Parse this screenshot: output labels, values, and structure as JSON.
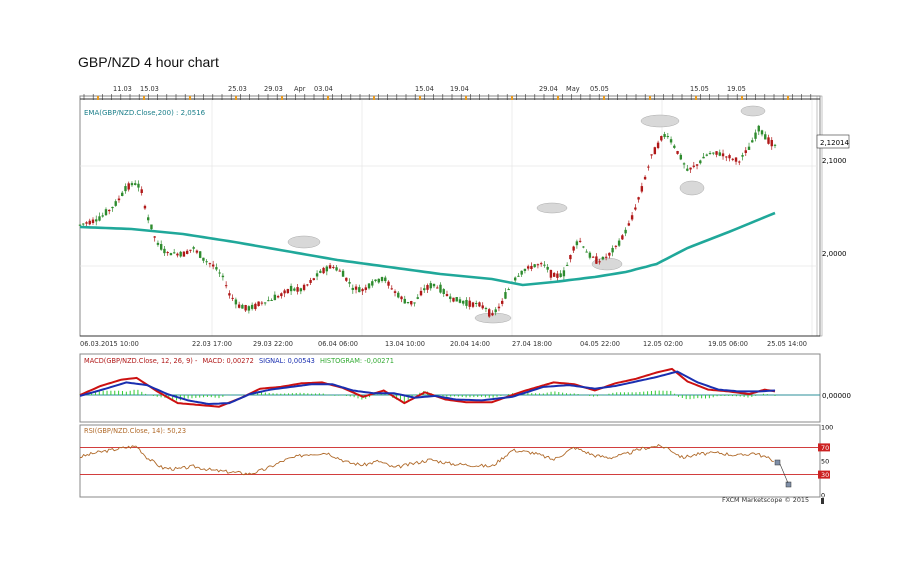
{
  "page": {
    "title": "GBP/NZD 4 hour chart"
  },
  "colors": {
    "up_candle": "#2e8b2e",
    "down_candle": "#b01818",
    "ema": "#20a89a",
    "macd": "#cc1111",
    "signal": "#1a2fb0",
    "histogram": "#33cc33",
    "rsi": "#b06a2a",
    "rsi_band": "#cc2222",
    "zero_line": "#2b8f99",
    "annotation": "#d8d8d8",
    "price_box": "#ffffff"
  },
  "price_panel": {
    "indicator_label": "EMA(GBP/NZD.Close,200) : 2,0516",
    "current_price_label": "2,12014",
    "y_tick_labels": [
      "2,1000",
      "2,0000"
    ],
    "top_date_labels": [
      "11.03",
      "15.03",
      "25.03",
      "29.03",
      "Apr",
      "03.04",
      "15.04",
      "19.04",
      "29.04",
      "May",
      "05.05",
      "15.05",
      "19.05"
    ],
    "bottom_date_labels": [
      "06.03.2015 10:00",
      "22.03 17:00",
      "29.03 22:00",
      "06.04 06:00",
      "13.04 10:00",
      "20.04 14:00",
      "27.04 18:00",
      "04.05 22:00",
      "12.05 02:00",
      "19.05 06:00",
      "25.05 14:00"
    ]
  },
  "macd_panel": {
    "label_main": "MACD(GBP/NZD.Close, 12, 26, 9) -",
    "label_macd": "MACD: 0,00272",
    "label_signal": "SIGNAL: 0,00543",
    "label_histogram": "HISTOGRAM: -0,00271",
    "y_tick_label": "0,00000"
  },
  "rsi_panel": {
    "label": "RSI(GBP/NZD.Close, 14): 50,23",
    "y_tick_labels": [
      "100",
      "70",
      "50",
      "30",
      "0"
    ]
  },
  "footer": {
    "watermark": "FXCM Marketscope © 2015"
  },
  "chart_data": [
    {
      "type": "candlestick",
      "title": "GBP/NZD 4 hour chart",
      "ylim": [
        1.93,
        2.17
      ],
      "x_range": [
        "06.03.2015 10:00",
        "25.05 14:00"
      ],
      "price_path": [
        [
          0,
          2.041
        ],
        [
          4,
          2.048
        ],
        [
          7,
          2.062
        ],
        [
          9,
          2.079
        ],
        [
          11,
          2.083
        ],
        [
          12,
          2.074
        ],
        [
          13,
          2.051
        ],
        [
          15,
          2.022
        ],
        [
          17,
          2.013
        ],
        [
          20,
          2.012
        ],
        [
          22,
          2.018
        ],
        [
          24,
          2.007
        ],
        [
          26,
          2.0
        ],
        [
          28,
          1.987
        ],
        [
          29,
          1.972
        ],
        [
          31,
          1.96
        ],
        [
          33,
          1.957
        ],
        [
          35,
          1.963
        ],
        [
          37,
          1.966
        ],
        [
          39,
          1.971
        ],
        [
          41,
          1.977
        ],
        [
          43,
          1.976
        ],
        [
          45,
          1.985
        ],
        [
          47,
          1.995
        ],
        [
          49,
          2.0
        ],
        [
          51,
          1.993
        ],
        [
          53,
          1.978
        ],
        [
          55,
          1.976
        ],
        [
          57,
          1.984
        ],
        [
          59,
          1.988
        ],
        [
          61,
          1.975
        ],
        [
          63,
          1.965
        ],
        [
          65,
          1.963
        ],
        [
          67,
          1.978
        ],
        [
          69,
          1.981
        ],
        [
          71,
          1.972
        ],
        [
          73,
          1.966
        ],
        [
          75,
          1.963
        ],
        [
          77,
          1.962
        ],
        [
          79,
          1.958
        ],
        [
          80,
          1.95
        ],
        [
          82,
          1.963
        ],
        [
          84,
          1.985
        ],
        [
          86,
          1.995
        ],
        [
          88,
          2.0
        ],
        [
          90,
          2.002
        ],
        [
          92,
          1.99
        ],
        [
          94,
          1.992
        ],
        [
          96,
          2.02
        ],
        [
          97,
          2.026
        ],
        [
          99,
          2.01
        ],
        [
          101,
          2.005
        ],
        [
          103,
          2.012
        ],
        [
          105,
          2.025
        ],
        [
          107,
          2.045
        ],
        [
          109,
          2.075
        ],
        [
          111,
          2.11
        ],
        [
          113,
          2.128
        ],
        [
          114,
          2.132
        ],
        [
          116,
          2.115
        ],
        [
          118,
          2.095
        ],
        [
          120,
          2.102
        ],
        [
          122,
          2.112
        ],
        [
          124,
          2.113
        ],
        [
          126,
          2.109
        ],
        [
          128,
          2.105
        ],
        [
          130,
          2.118
        ],
        [
          132,
          2.138
        ],
        [
          133,
          2.13
        ],
        [
          135,
          2.12
        ]
      ]
    },
    {
      "type": "line",
      "name": "EMA(GBP/NZD.Close,200)",
      "values_path": [
        [
          0,
          2.039
        ],
        [
          10,
          2.037
        ],
        [
          20,
          2.032
        ],
        [
          30,
          2.024
        ],
        [
          40,
          2.015
        ],
        [
          50,
          2.006
        ],
        [
          60,
          1.999
        ],
        [
          70,
          1.992
        ],
        [
          80,
          1.987
        ],
        [
          86,
          1.981
        ],
        [
          92,
          1.984
        ],
        [
          100,
          1.989
        ],
        [
          106,
          1.994
        ],
        [
          112,
          2.002
        ],
        [
          118,
          2.018
        ],
        [
          126,
          2.034
        ],
        [
          135,
          2.053
        ]
      ]
    },
    {
      "type": "line",
      "macd_path": [
        [
          0,
          0
        ],
        [
          4,
          0.5
        ],
        [
          8,
          0.85
        ],
        [
          11,
          0.95
        ],
        [
          15,
          0.2
        ],
        [
          19,
          -0.45
        ],
        [
          23,
          -0.55
        ],
        [
          27,
          -0.65
        ],
        [
          31,
          -0.2
        ],
        [
          35,
          0.35
        ],
        [
          39,
          0.45
        ],
        [
          43,
          0.65
        ],
        [
          47,
          0.7
        ],
        [
          51,
          0.4
        ],
        [
          55,
          -0.1
        ],
        [
          59,
          0.25
        ],
        [
          63,
          -0.45
        ],
        [
          67,
          0.15
        ],
        [
          71,
          -0.25
        ],
        [
          75,
          -0.4
        ],
        [
          80,
          -0.4
        ],
        [
          86,
          0.2
        ],
        [
          92,
          0.7
        ],
        [
          96,
          0.6
        ],
        [
          100,
          0.25
        ],
        [
          104,
          0.65
        ],
        [
          108,
          0.9
        ],
        [
          112,
          1.25
        ],
        [
          115,
          1.45
        ],
        [
          118,
          0.75
        ],
        [
          122,
          0.3
        ],
        [
          126,
          0.2
        ],
        [
          130,
          0.05
        ],
        [
          133,
          0.3
        ],
        [
          135,
          0.2
        ]
      ],
      "signal_path": [
        [
          0,
          -0.05
        ],
        [
          5,
          0.35
        ],
        [
          9,
          0.7
        ],
        [
          13,
          0.55
        ],
        [
          17,
          0.05
        ],
        [
          21,
          -0.3
        ],
        [
          25,
          -0.5
        ],
        [
          29,
          -0.45
        ],
        [
          33,
          0.05
        ],
        [
          37,
          0.3
        ],
        [
          41,
          0.45
        ],
        [
          45,
          0.6
        ],
        [
          49,
          0.6
        ],
        [
          53,
          0.25
        ],
        [
          57,
          0.1
        ],
        [
          61,
          0.1
        ],
        [
          65,
          -0.15
        ],
        [
          69,
          -0.05
        ],
        [
          73,
          -0.25
        ],
        [
          78,
          -0.3
        ],
        [
          84,
          -0.1
        ],
        [
          90,
          0.45
        ],
        [
          95,
          0.55
        ],
        [
          100,
          0.35
        ],
        [
          104,
          0.5
        ],
        [
          108,
          0.75
        ],
        [
          112,
          1.0
        ],
        [
          116,
          1.3
        ],
        [
          120,
          0.7
        ],
        [
          124,
          0.3
        ],
        [
          128,
          0.2
        ],
        [
          132,
          0.2
        ],
        [
          135,
          0.25
        ]
      ]
    },
    {
      "type": "line",
      "ylim": [
        0,
        100
      ],
      "rsi_path": [
        [
          0,
          56
        ],
        [
          3,
          62
        ],
        [
          6,
          66
        ],
        [
          9,
          70
        ],
        [
          11,
          72
        ],
        [
          13,
          55
        ],
        [
          16,
          40
        ],
        [
          19,
          38
        ],
        [
          22,
          42
        ],
        [
          26,
          36
        ],
        [
          29,
          34
        ],
        [
          33,
          31
        ],
        [
          36,
          38
        ],
        [
          40,
          52
        ],
        [
          44,
          60
        ],
        [
          48,
          62
        ],
        [
          52,
          48
        ],
        [
          55,
          44
        ],
        [
          58,
          50
        ],
        [
          61,
          40
        ],
        [
          64,
          45
        ],
        [
          68,
          52
        ],
        [
          72,
          46
        ],
        [
          76,
          44
        ],
        [
          80,
          42
        ],
        [
          84,
          66
        ],
        [
          88,
          62
        ],
        [
          92,
          52
        ],
        [
          96,
          70
        ],
        [
          100,
          58
        ],
        [
          103,
          55
        ],
        [
          106,
          60
        ],
        [
          109,
          68
        ],
        [
          112,
          72
        ],
        [
          114,
          70
        ],
        [
          117,
          55
        ],
        [
          120,
          60
        ],
        [
          124,
          62
        ],
        [
          128,
          58
        ],
        [
          131,
          62
        ],
        [
          133,
          56
        ],
        [
          135,
          50
        ]
      ]
    }
  ]
}
